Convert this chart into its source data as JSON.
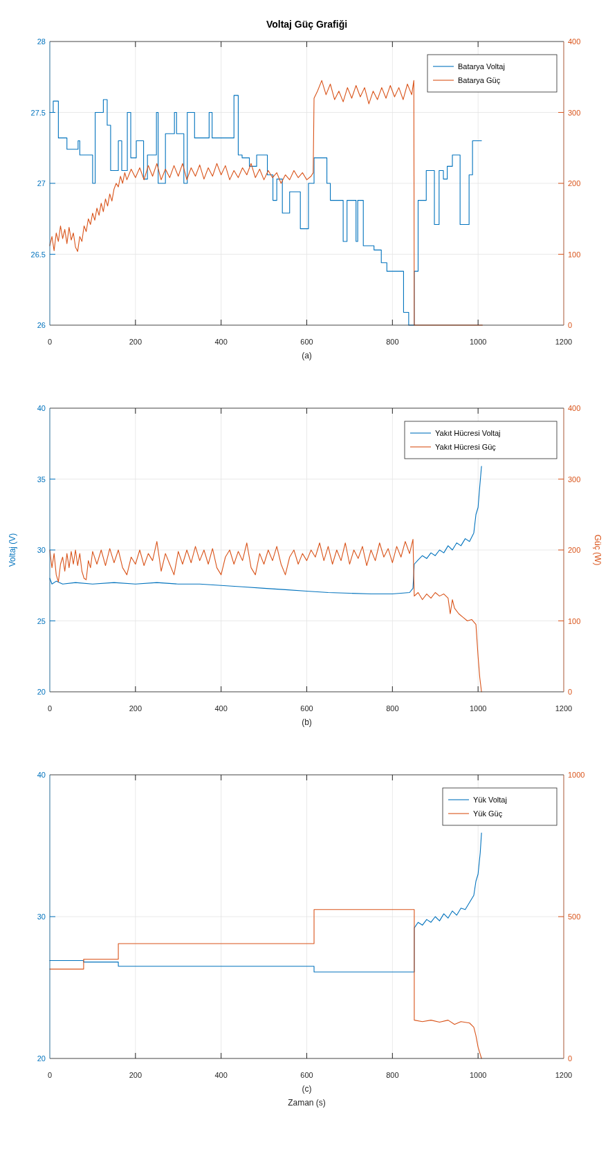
{
  "chart_data": [
    {
      "type": "line",
      "title": "Voltaj Güç Grafiği",
      "xlabel": "(a)",
      "xlim": [
        0,
        1200
      ],
      "xticks": [
        0,
        200,
        400,
        600,
        800,
        1000,
        1200
      ],
      "ylim": [
        26,
        28
      ],
      "yticks": [
        26,
        26.5,
        27,
        27.5,
        28
      ],
      "y2lim": [
        0,
        400
      ],
      "y2ticks": [
        0,
        100,
        200,
        300,
        400
      ],
      "grid": true,
      "legend": "top right",
      "series": [
        {
          "name": "Batarya Voltaj",
          "color": "#0072bd",
          "type": "step",
          "x": [
            0,
            8,
            20,
            40,
            66,
            70,
            100,
            106,
            125,
            134,
            142,
            160,
            168,
            181,
            189,
            202,
            219,
            228,
            249,
            253,
            270,
            291,
            296,
            313,
            321,
            338,
            372,
            379,
            430,
            440,
            449,
            466,
            483,
            508,
            521,
            530,
            543,
            560,
            585,
            604,
            617,
            647,
            655,
            685,
            694,
            715,
            719,
            732,
            757,
            774,
            787,
            826,
            838,
            851,
            860,
            879,
            898,
            909,
            919,
            928,
            940,
            958,
            979,
            987,
            1008
          ],
          "values": [
            27.5,
            27.58,
            27.32,
            27.24,
            27.3,
            27.2,
            27.0,
            27.5,
            27.59,
            27.41,
            27.09,
            27.3,
            27.09,
            27.5,
            27.18,
            27.3,
            27.03,
            27.2,
            27.5,
            27.0,
            27.35,
            27.5,
            27.35,
            27.0,
            27.5,
            27.32,
            27.5,
            27.32,
            27.62,
            27.2,
            27.18,
            27.12,
            27.2,
            27.06,
            26.88,
            27.03,
            26.79,
            26.94,
            26.68,
            27.0,
            27.18,
            27.0,
            26.88,
            26.59,
            26.88,
            26.59,
            26.88,
            26.56,
            26.53,
            26.44,
            26.38,
            26.09,
            26.0,
            26.38,
            26.88,
            27.09,
            26.71,
            27.09,
            27.03,
            27.12,
            27.2,
            26.71,
            27.06,
            27.3,
            27.3
          ]
        },
        {
          "name": "Batarya Güç",
          "color": "#d95319",
          "axis": "y2",
          "x": [
            0,
            5,
            10,
            15,
            20,
            25,
            30,
            35,
            40,
            45,
            50,
            55,
            60,
            65,
            70,
            75,
            80,
            85,
            90,
            95,
            100,
            105,
            110,
            115,
            120,
            125,
            130,
            135,
            140,
            145,
            150,
            155,
            160,
            165,
            170,
            175,
            180,
            190,
            200,
            210,
            220,
            230,
            240,
            250,
            260,
            270,
            280,
            290,
            300,
            310,
            320,
            330,
            340,
            350,
            360,
            370,
            380,
            390,
            400,
            410,
            420,
            430,
            440,
            450,
            460,
            470,
            480,
            490,
            500,
            510,
            520,
            530,
            540,
            550,
            560,
            570,
            580,
            590,
            600,
            610,
            615,
            617,
            625,
            635,
            645,
            655,
            665,
            675,
            685,
            695,
            705,
            715,
            725,
            735,
            745,
            755,
            765,
            775,
            785,
            795,
            805,
            815,
            825,
            835,
            845,
            850,
            851,
            1010
          ],
          "values": [
            112,
            125,
            105,
            130,
            118,
            140,
            122,
            135,
            115,
            138,
            120,
            130,
            110,
            104,
            125,
            118,
            140,
            132,
            150,
            142,
            158,
            148,
            165,
            155,
            172,
            160,
            178,
            168,
            185,
            175,
            192,
            200,
            195,
            210,
            200,
            215,
            205,
            220,
            208,
            222,
            205,
            225,
            210,
            228,
            205,
            220,
            208,
            225,
            210,
            228,
            205,
            222,
            210,
            226,
            206,
            222,
            210,
            228,
            212,
            225,
            205,
            218,
            208,
            222,
            212,
            228,
            208,
            220,
            205,
            218,
            208,
            215,
            200,
            212,
            205,
            218,
            208,
            215,
            205,
            210,
            215,
            320,
            330,
            345,
            325,
            340,
            318,
            330,
            315,
            335,
            320,
            338,
            322,
            335,
            312,
            330,
            318,
            335,
            320,
            338,
            322,
            335,
            318,
            340,
            325,
            345,
            0,
            0
          ]
        }
      ]
    },
    {
      "type": "line",
      "xlabel": "(b)",
      "ylabel": "Voltaj (V)",
      "y2label": "Güç (W)",
      "xlim": [
        0,
        1200
      ],
      "xticks": [
        0,
        200,
        400,
        600,
        800,
        1000,
        1200
      ],
      "ylim": [
        20,
        40
      ],
      "yticks": [
        20,
        25,
        30,
        35,
        40
      ],
      "y2lim": [
        0,
        400
      ],
      "y2ticks": [
        0,
        100,
        200,
        300,
        400
      ],
      "grid": true,
      "legend": "top right",
      "series": [
        {
          "name": "Yakıt Hücresi Voltaj",
          "color": "#0072bd",
          "x": [
            0,
            5,
            15,
            30,
            60,
            100,
            150,
            200,
            250,
            300,
            350,
            400,
            450,
            500,
            550,
            600,
            650,
            700,
            750,
            800,
            840,
            848,
            851,
            860,
            870,
            880,
            890,
            900,
            910,
            920,
            930,
            940,
            950,
            960,
            970,
            980,
            990,
            995,
            1000,
            1004,
            1008
          ],
          "values": [
            28.0,
            27.6,
            27.8,
            27.6,
            27.7,
            27.6,
            27.7,
            27.6,
            27.7,
            27.6,
            27.6,
            27.5,
            27.4,
            27.3,
            27.2,
            27.1,
            27.0,
            26.95,
            26.9,
            26.9,
            27.0,
            27.3,
            29.0,
            29.3,
            29.6,
            29.4,
            29.8,
            29.6,
            30.0,
            29.8,
            30.3,
            30.0,
            30.5,
            30.3,
            30.8,
            30.6,
            31.2,
            32.5,
            33.0,
            34.5,
            35.9
          ]
        },
        {
          "name": "Yakıt Hücresi Güç",
          "color": "#d95319",
          "axis": "y2",
          "x": [
            0,
            5,
            10,
            15,
            20,
            25,
            30,
            35,
            40,
            45,
            50,
            55,
            60,
            65,
            70,
            75,
            80,
            85,
            90,
            95,
            100,
            110,
            120,
            130,
            140,
            150,
            160,
            170,
            180,
            190,
            200,
            210,
            220,
            230,
            240,
            250,
            260,
            270,
            280,
            290,
            300,
            310,
            320,
            330,
            340,
            350,
            360,
            370,
            380,
            390,
            400,
            410,
            420,
            430,
            440,
            450,
            460,
            470,
            480,
            490,
            500,
            510,
            520,
            530,
            540,
            550,
            560,
            570,
            580,
            590,
            600,
            610,
            620,
            630,
            640,
            650,
            660,
            670,
            680,
            690,
            700,
            710,
            720,
            730,
            740,
            750,
            760,
            770,
            780,
            790,
            800,
            810,
            820,
            830,
            840,
            848,
            851,
            860,
            870,
            880,
            890,
            900,
            910,
            920,
            930,
            935,
            940,
            945,
            955,
            965,
            975,
            985,
            995,
            1000,
            1004,
            1008
          ],
          "values": [
            200,
            175,
            195,
            165,
            155,
            180,
            190,
            170,
            195,
            175,
            198,
            180,
            200,
            178,
            195,
            170,
            160,
            158,
            185,
            175,
            198,
            180,
            200,
            178,
            202,
            182,
            200,
            175,
            165,
            190,
            180,
            200,
            178,
            195,
            185,
            212,
            170,
            195,
            180,
            165,
            198,
            180,
            200,
            182,
            205,
            185,
            200,
            180,
            202,
            175,
            165,
            190,
            200,
            180,
            198,
            185,
            210,
            175,
            165,
            195,
            180,
            200,
            185,
            205,
            180,
            165,
            190,
            200,
            180,
            195,
            185,
            200,
            190,
            210,
            185,
            205,
            180,
            200,
            185,
            210,
            180,
            200,
            188,
            205,
            178,
            200,
            185,
            210,
            190,
            202,
            182,
            205,
            190,
            212,
            195,
            215,
            135,
            140,
            130,
            138,
            132,
            140,
            135,
            138,
            132,
            110,
            130,
            118,
            110,
            105,
            100,
            102,
            95,
            50,
            20,
            0
          ]
        }
      ]
    },
    {
      "type": "line",
      "xlabel": "(c)\nZaman (s)",
      "xlim": [
        0,
        1200
      ],
      "xticks": [
        0,
        200,
        400,
        600,
        800,
        1000,
        1200
      ],
      "ylim": [
        20,
        40
      ],
      "yticks": [
        20,
        30,
        40
      ],
      "y2lim": [
        0,
        1000
      ],
      "y2ticks": [
        0,
        500,
        1000
      ],
      "grid": true,
      "legend": "top right",
      "series": [
        {
          "name": "Yük Voltaj",
          "color": "#0072bd",
          "x": [
            0,
            79,
            79,
            160,
            160,
            617,
            617,
            851,
            851,
            860,
            870,
            880,
            890,
            900,
            910,
            920,
            930,
            940,
            950,
            960,
            970,
            980,
            990,
            995,
            1000,
            1005,
            1008
          ],
          "values": [
            26.9,
            26.9,
            26.8,
            26.8,
            26.5,
            26.5,
            26.1,
            26.1,
            29.2,
            29.6,
            29.4,
            29.8,
            29.6,
            30.0,
            29.7,
            30.2,
            29.9,
            30.4,
            30.1,
            30.6,
            30.5,
            31.0,
            31.5,
            32.5,
            33.0,
            34.5,
            35.9
          ]
        },
        {
          "name": "Yük Güç",
          "color": "#d95319",
          "axis": "y2",
          "x": [
            0,
            79,
            79,
            160,
            160,
            617,
            617,
            851,
            851,
            870,
            890,
            910,
            930,
            945,
            960,
            980,
            990,
            995,
            1000,
            1008
          ],
          "values": [
            315,
            315,
            350,
            350,
            405,
            405,
            525,
            525,
            135,
            130,
            135,
            128,
            135,
            120,
            130,
            125,
            110,
            80,
            40,
            0
          ]
        }
      ]
    }
  ]
}
